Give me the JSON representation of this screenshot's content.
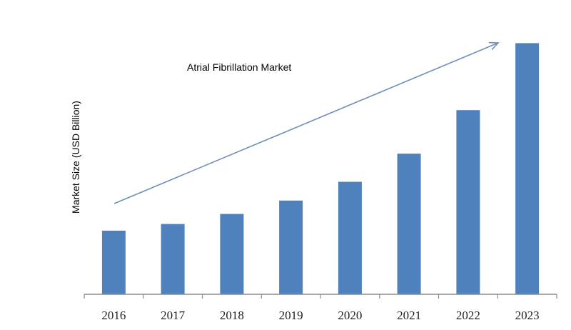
{
  "chart_data": {
    "type": "bar",
    "title": "Atrial Fibrillation Market",
    "xlabel": "",
    "ylabel": "Market Size  (USD Billion)",
    "categories": [
      "2016",
      "2017",
      "2018",
      "2019",
      "2020",
      "2021",
      "2022",
      "2023"
    ],
    "values": [
      9.5,
      10.5,
      12.0,
      14.0,
      16.8,
      21.0,
      27.5,
      37.5
    ],
    "ylim": [
      0,
      40
    ],
    "grid": false,
    "legend": "none",
    "annotations": [
      "upward trend arrow"
    ]
  },
  "colors": {
    "bar": "#4f81bd",
    "arrow": "#6f8fb8",
    "axis": "#8c8c8c"
  }
}
